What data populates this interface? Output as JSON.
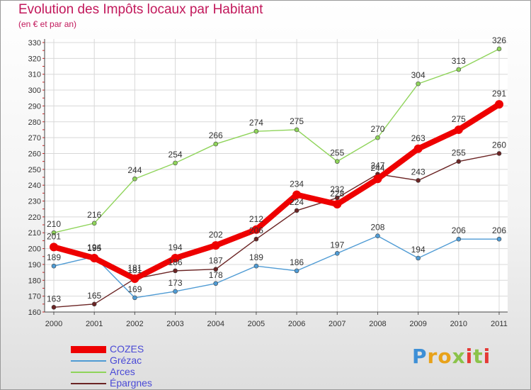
{
  "title": "Evolution des Impôts locaux par Habitant",
  "subtitle": "(en € et par an)",
  "brand": {
    "text": "Proxiti",
    "colors": [
      "#3d8fd6",
      "#e8a21a",
      "#e8a21a",
      "#8bc34a",
      "#e53935",
      "#8bc34a",
      "#e53935"
    ]
  },
  "chart_data": {
    "type": "line",
    "title": "Evolution des Impôts locaux par Habitant",
    "subtitle": "(en € et par an)",
    "xlabel": "",
    "ylabel": "",
    "categories": [
      "2000",
      "2001",
      "2002",
      "2003",
      "2004",
      "2005",
      "2006",
      "2007",
      "2008",
      "2009",
      "2010",
      "2011"
    ],
    "ylim": [
      160,
      330
    ],
    "yticks": [
      160,
      170,
      180,
      190,
      200,
      210,
      220,
      230,
      240,
      250,
      260,
      270,
      280,
      290,
      300,
      310,
      320,
      330
    ],
    "grid": true,
    "legend_position": "bottom-left",
    "series": [
      {
        "name": "COZES",
        "color": "#ee0000",
        "values": [
          201,
          194,
          181,
          194,
          202,
          212,
          234,
          228,
          244,
          263,
          275,
          291
        ]
      },
      {
        "name": "Grézac",
        "color": "#4f9bd4",
        "values": [
          189,
          195,
          169,
          173,
          178,
          189,
          186,
          197,
          208,
          194,
          206,
          206
        ]
      },
      {
        "name": "Arces",
        "color": "#8fd45a",
        "values": [
          210,
          216,
          244,
          254,
          266,
          274,
          275,
          255,
          270,
          304,
          313,
          326
        ]
      },
      {
        "name": "Épargnes",
        "color": "#6b2424",
        "values": [
          163,
          165,
          181,
          186,
          187,
          206,
          224,
          232,
          247,
          243,
          255,
          260
        ]
      }
    ]
  }
}
